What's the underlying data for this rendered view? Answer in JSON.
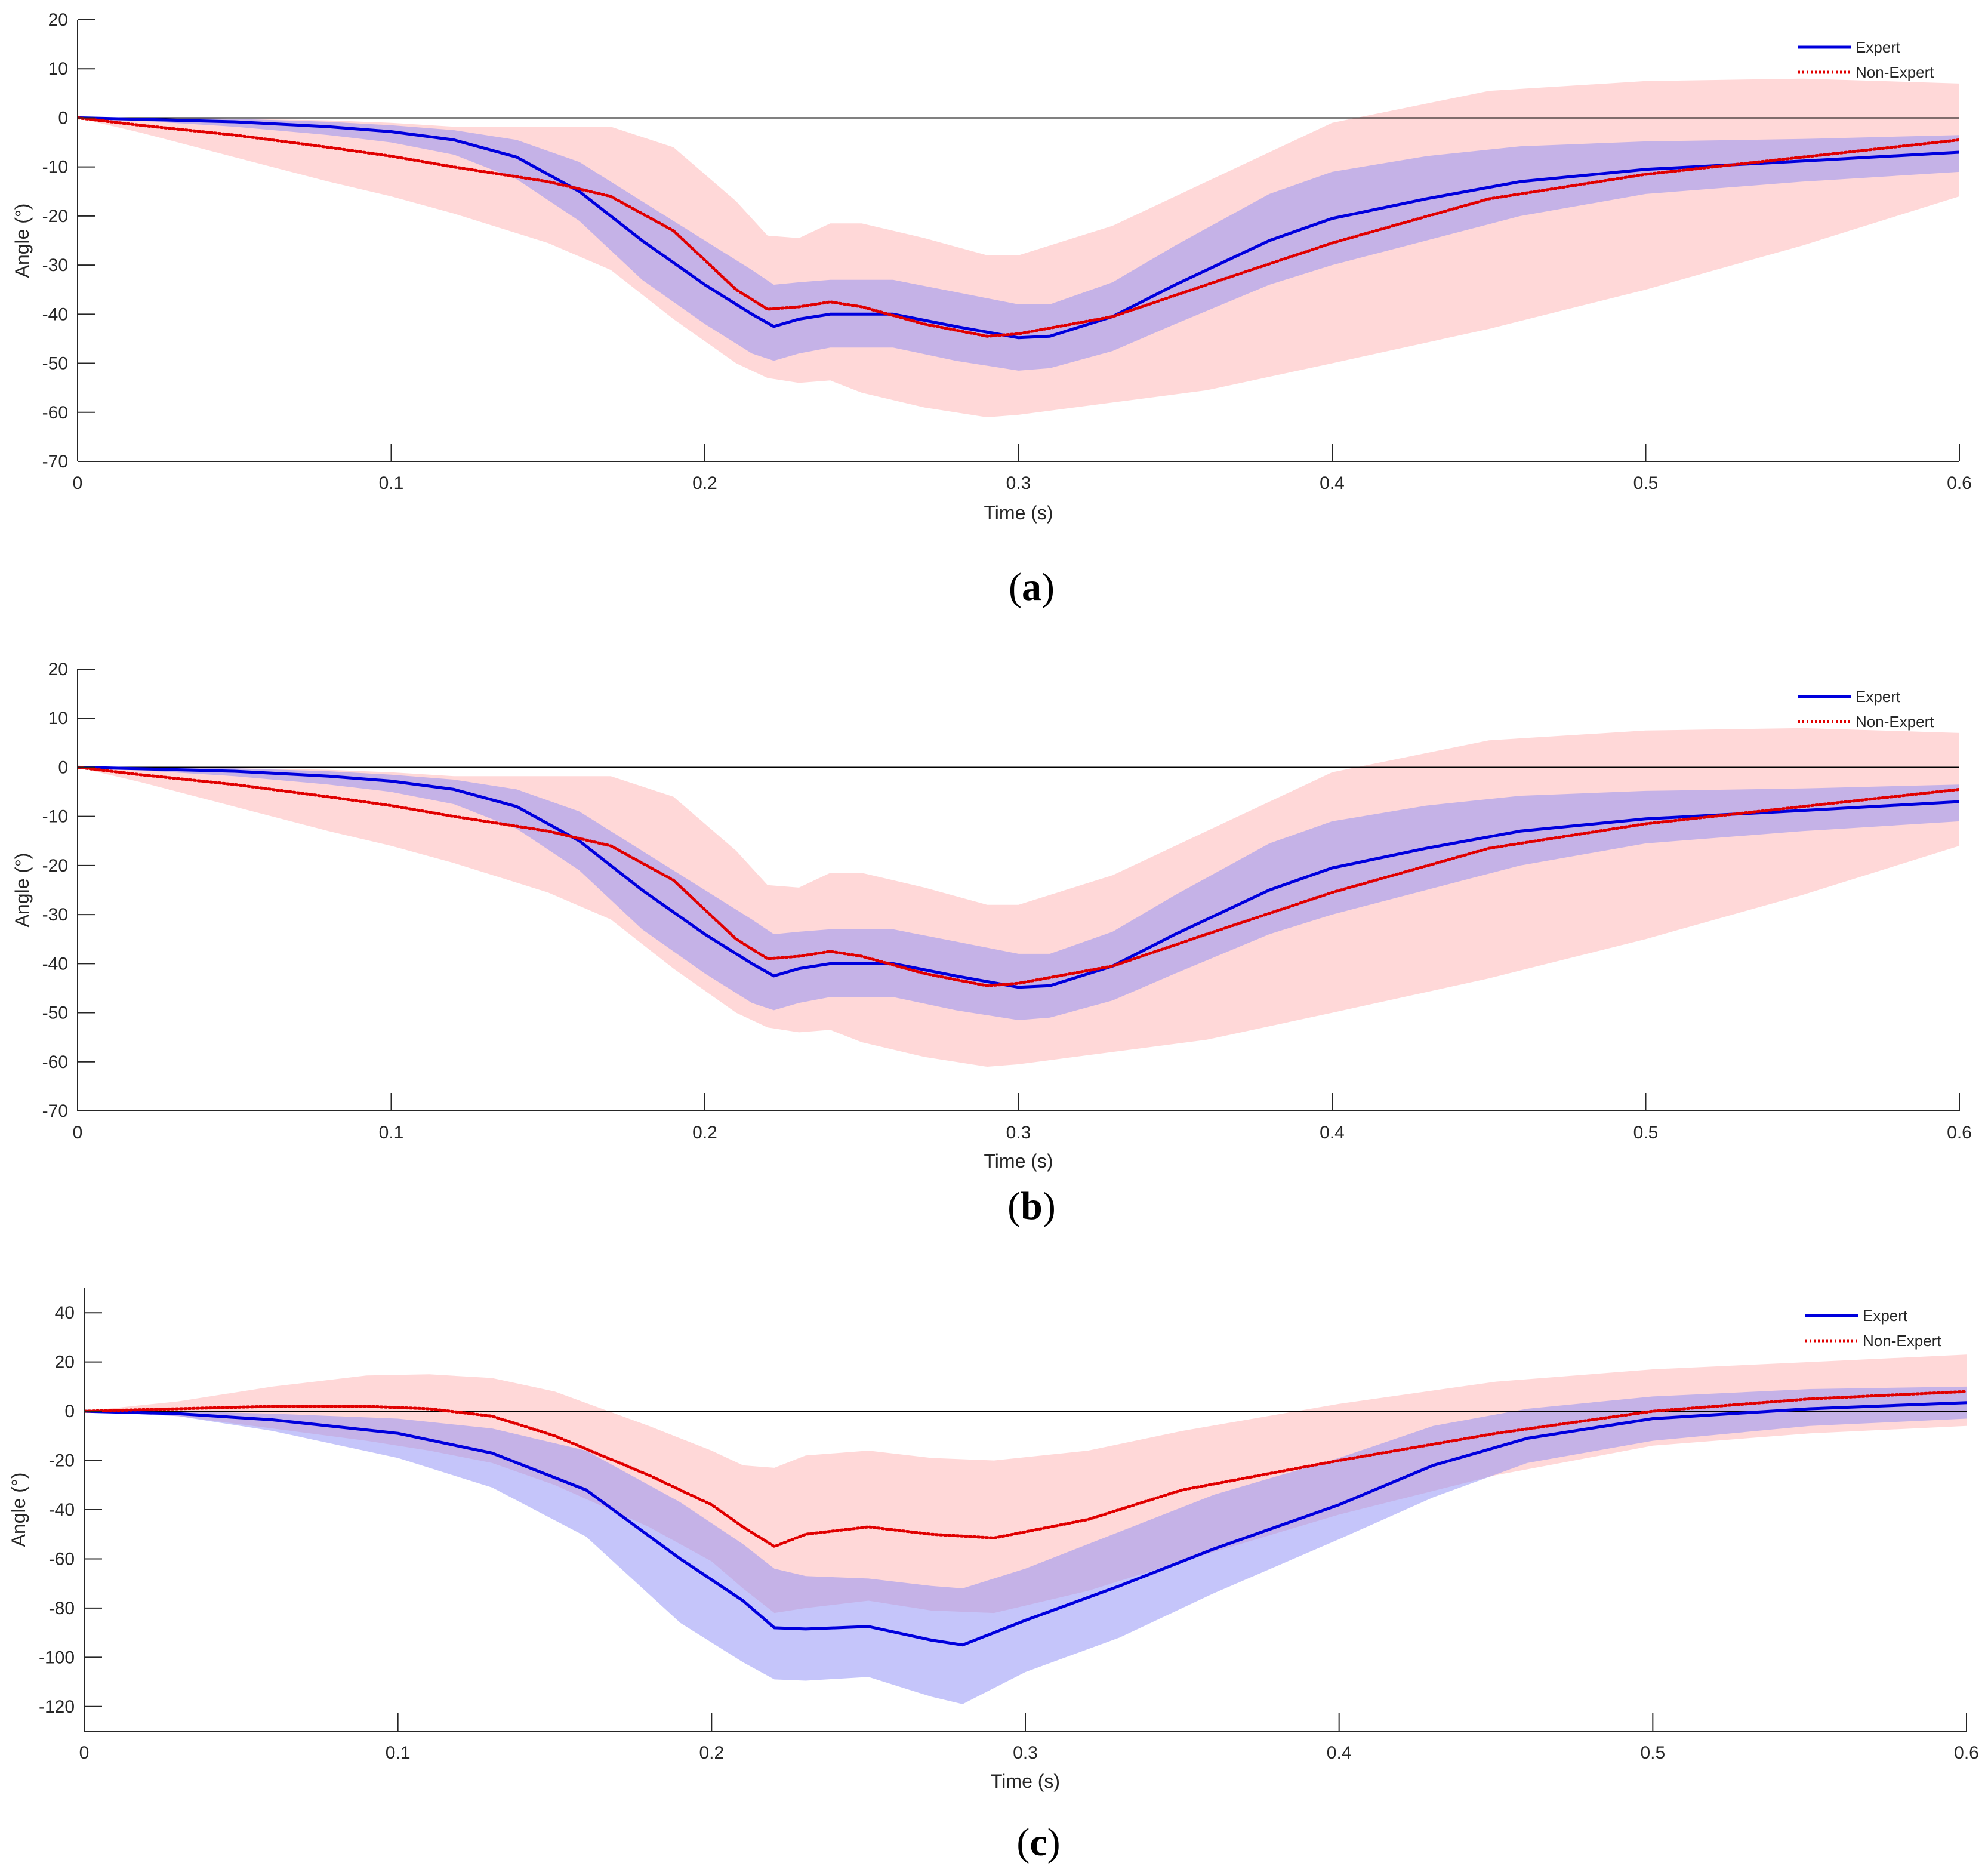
{
  "colors": {
    "expert": "#0000dd",
    "non_expert": "#e00000",
    "expert_band": "#8c8cf5",
    "non_expert_band": "#ffb8b8",
    "axis": "#262626",
    "zero_line": "#000000"
  },
  "chart_data": [
    {
      "type": "line",
      "panel_label": "(a)",
      "xlabel": "Time (s)",
      "ylabel": "Angle (°)",
      "xlim": [
        0,
        0.6
      ],
      "ylim": [
        -70,
        20
      ],
      "xticks": [
        0,
        0.1,
        0.2,
        0.3,
        0.4,
        0.5,
        0.6
      ],
      "xtick_labels": [
        "0",
        "0.1",
        "0.2",
        "0.3",
        "0.4",
        "0.5",
        "0.6"
      ],
      "yticks": [
        20,
        10,
        0,
        -10,
        -20,
        -30,
        -40,
        -50,
        -60,
        -70
      ],
      "ytick_labels": [
        "20",
        "10",
        "0",
        "-10",
        "-20",
        "-30",
        "-40",
        "-50",
        "-60",
        "-70"
      ],
      "legend_position": "top-right",
      "series": [
        {
          "name": "Expert",
          "style": "solid",
          "x": [
            0,
            0.02,
            0.05,
            0.08,
            0.1,
            0.12,
            0.14,
            0.16,
            0.18,
            0.2,
            0.215,
            0.222,
            0.23,
            0.24,
            0.26,
            0.28,
            0.3,
            0.31,
            0.33,
            0.35,
            0.38,
            0.4,
            0.43,
            0.46,
            0.5,
            0.55,
            0.6
          ],
          "y": [
            0,
            -0.3,
            -0.8,
            -1.8,
            -2.8,
            -4.5,
            -8,
            -15,
            -25,
            -34,
            -40,
            -42.5,
            -41,
            -40,
            -40,
            -42.5,
            -44.8,
            -44.5,
            -40.5,
            -34,
            -25,
            -20.5,
            -16.5,
            -13,
            -10.5,
            -8.8,
            -7
          ],
          "upper": [
            0,
            0,
            -0.2,
            -0.8,
            -1.5,
            -2.5,
            -4.5,
            -9,
            -17,
            -25,
            -31,
            -34,
            -33.5,
            -33,
            -33,
            -35.5,
            -38,
            -38,
            -33.5,
            -26,
            -15.5,
            -11,
            -7.8,
            -5.8,
            -4.8,
            -4.3,
            -3.5
          ],
          "lower": [
            0,
            -0.6,
            -1.8,
            -3.5,
            -5,
            -7.5,
            -12.5,
            -21,
            -33,
            -42,
            -48,
            -49.5,
            -48,
            -46.8,
            -46.8,
            -49.5,
            -51.5,
            -51,
            -47.5,
            -42,
            -34,
            -30,
            -25,
            -20,
            -15.5,
            -13,
            -11
          ]
        },
        {
          "name": "Non-Expert",
          "style": "dotted",
          "x": [
            0,
            0.02,
            0.05,
            0.08,
            0.1,
            0.12,
            0.15,
            0.17,
            0.19,
            0.21,
            0.22,
            0.23,
            0.24,
            0.25,
            0.27,
            0.29,
            0.3,
            0.33,
            0.36,
            0.4,
            0.45,
            0.5,
            0.55,
            0.6
          ],
          "y": [
            0,
            -1.5,
            -3.5,
            -6,
            -7.8,
            -10,
            -13,
            -16,
            -23,
            -35,
            -39,
            -38.5,
            -37.5,
            -38.5,
            -42,
            -44.5,
            -44,
            -40.5,
            -34,
            -25.5,
            -16.5,
            -11.5,
            -8,
            -4.5
          ],
          "upper": [
            0,
            0,
            -0.2,
            -0.5,
            -1,
            -1.8,
            -1.8,
            -1.8,
            -6,
            -17,
            -24,
            -24.5,
            -21.5,
            -21.5,
            -24.5,
            -28,
            -28,
            -22,
            -13,
            -1,
            5.5,
            7.5,
            8,
            7
          ],
          "lower": [
            0,
            -3,
            -8,
            -13,
            -16,
            -19.5,
            -25.5,
            -31,
            -41,
            -50,
            -53,
            -54,
            -53.5,
            -56,
            -59,
            -61,
            -60.5,
            -58,
            -55.5,
            -50,
            -43,
            -35,
            -26,
            -16
          ]
        }
      ]
    },
    {
      "type": "line",
      "panel_label": "(b)",
      "xlabel": "Time (s)",
      "ylabel": "Angle (°)",
      "xlim": [
        0,
        0.6
      ],
      "ylim": [
        -70,
        20
      ],
      "xticks": [
        0,
        0.1,
        0.2,
        0.3,
        0.4,
        0.5,
        0.6
      ],
      "xtick_labels": [
        "0",
        "0.1",
        "0.2",
        "0.3",
        "0.4",
        "0.5",
        "0.6"
      ],
      "yticks": [
        20,
        10,
        0,
        -10,
        -20,
        -30,
        -40,
        -50,
        -60,
        -70
      ],
      "ytick_labels": [
        "20",
        "10",
        "0",
        "-10",
        "-20",
        "-30",
        "-40",
        "-50",
        "-60",
        "-70"
      ],
      "legend_position": "top-right",
      "series": [
        {
          "name": "Expert",
          "style": "solid",
          "x": [
            0,
            0.02,
            0.05,
            0.08,
            0.1,
            0.12,
            0.14,
            0.16,
            0.18,
            0.2,
            0.215,
            0.222,
            0.23,
            0.24,
            0.26,
            0.28,
            0.3,
            0.31,
            0.33,
            0.35,
            0.38,
            0.4,
            0.43,
            0.46,
            0.5,
            0.55,
            0.6
          ],
          "y": [
            0,
            -0.3,
            -0.8,
            -1.8,
            -2.8,
            -4.5,
            -8,
            -15,
            -25,
            -34,
            -40,
            -42.5,
            -41,
            -40,
            -40,
            -42.5,
            -44.8,
            -44.5,
            -40.5,
            -34,
            -25,
            -20.5,
            -16.5,
            -13,
            -10.5,
            -8.8,
            -7
          ],
          "upper": [
            0,
            0,
            -0.2,
            -0.8,
            -1.5,
            -2.5,
            -4.5,
            -9,
            -17,
            -25,
            -31,
            -34,
            -33.5,
            -33,
            -33,
            -35.5,
            -38,
            -38,
            -33.5,
            -26,
            -15.5,
            -11,
            -7.8,
            -5.8,
            -4.8,
            -4.3,
            -3.5
          ],
          "lower": [
            0,
            -0.6,
            -1.8,
            -3.5,
            -5,
            -7.5,
            -12.5,
            -21,
            -33,
            -42,
            -48,
            -49.5,
            -48,
            -46.8,
            -46.8,
            -49.5,
            -51.5,
            -51,
            -47.5,
            -42,
            -34,
            -30,
            -25,
            -20,
            -15.5,
            -13,
            -11
          ]
        },
        {
          "name": "Non-Expert",
          "style": "dotted",
          "x": [
            0,
            0.02,
            0.05,
            0.08,
            0.1,
            0.12,
            0.15,
            0.17,
            0.19,
            0.21,
            0.22,
            0.23,
            0.24,
            0.25,
            0.27,
            0.29,
            0.3,
            0.33,
            0.36,
            0.4,
            0.45,
            0.5,
            0.55,
            0.6
          ],
          "y": [
            0,
            -1.5,
            -3.5,
            -6,
            -7.8,
            -10,
            -13,
            -16,
            -23,
            -35,
            -39,
            -38.5,
            -37.5,
            -38.5,
            -42,
            -44.5,
            -44,
            -40.5,
            -34,
            -25.5,
            -16.5,
            -11.5,
            -8,
            -4.5
          ],
          "upper": [
            0,
            0,
            -0.2,
            -0.5,
            -1,
            -1.8,
            -1.8,
            -1.8,
            -6,
            -17,
            -24,
            -24.5,
            -21.5,
            -21.5,
            -24.5,
            -28,
            -28,
            -22,
            -13,
            -1,
            5.5,
            7.5,
            8,
            7
          ],
          "lower": [
            0,
            -3,
            -8,
            -13,
            -16,
            -19.5,
            -25.5,
            -31,
            -41,
            -50,
            -53,
            -54,
            -53.5,
            -56,
            -59,
            -61,
            -60.5,
            -58,
            -55.5,
            -50,
            -43,
            -35,
            -26,
            -16
          ]
        }
      ]
    },
    {
      "type": "line",
      "panel_label": "(c)",
      "xlabel": "Time (s)",
      "ylabel": "Angle (°)",
      "xlim": [
        0,
        0.6
      ],
      "ylim": [
        -130,
        50
      ],
      "xticks": [
        0,
        0.1,
        0.2,
        0.3,
        0.4,
        0.5,
        0.6
      ],
      "xtick_labels": [
        "0",
        "0.1",
        "0.2",
        "0.3",
        "0.4",
        "0.5",
        "0.6"
      ],
      "yticks": [
        40,
        20,
        0,
        -20,
        -40,
        -60,
        -80,
        -100,
        -120
      ],
      "ytick_labels": [
        "40",
        "20",
        "0",
        "-20",
        "-40",
        "-60",
        "-80",
        "-100",
        "-120"
      ],
      "legend_position": "top-right",
      "series": [
        {
          "name": "Expert",
          "style": "solid",
          "x": [
            0,
            0.03,
            0.06,
            0.1,
            0.13,
            0.16,
            0.19,
            0.21,
            0.22,
            0.23,
            0.25,
            0.27,
            0.28,
            0.3,
            0.33,
            0.36,
            0.4,
            0.43,
            0.46,
            0.5,
            0.55,
            0.6
          ],
          "y": [
            0,
            -1,
            -3.5,
            -9,
            -17,
            -32,
            -60,
            -77,
            -88,
            -88.5,
            -87.5,
            -93,
            -95,
            -85,
            -71,
            -56,
            -38,
            -22,
            -11,
            -3,
            1,
            3.5
          ],
          "upper": [
            0,
            0,
            -1,
            -3,
            -7,
            -16,
            -37,
            -54,
            -64,
            -67,
            -68,
            -71,
            -72,
            -64,
            -49,
            -34,
            -19,
            -6,
            1,
            6,
            9,
            10
          ],
          "lower": [
            0,
            -2,
            -8,
            -19,
            -31,
            -51,
            -86,
            -102,
            -109,
            -109.5,
            -108,
            -116,
            -119,
            -106,
            -92,
            -74,
            -52,
            -35,
            -21,
            -12,
            -6,
            -3
          ]
        },
        {
          "name": "Non-Expert",
          "style": "dotted",
          "x": [
            0,
            0.03,
            0.06,
            0.09,
            0.11,
            0.13,
            0.15,
            0.18,
            0.2,
            0.21,
            0.22,
            0.23,
            0.25,
            0.27,
            0.29,
            0.32,
            0.35,
            0.4,
            0.45,
            0.5,
            0.55,
            0.6
          ],
          "y": [
            0,
            1,
            2,
            2,
            1,
            -2,
            -10,
            -26,
            -38,
            -47,
            -55,
            -50,
            -47,
            -50,
            -51.5,
            -44,
            -32,
            -20,
            -9,
            0,
            5,
            8
          ],
          "upper": [
            0,
            4,
            10,
            14.5,
            15,
            13.5,
            8,
            -6,
            -16,
            -22,
            -23,
            -18,
            -16,
            -19,
            -20,
            -16,
            -8,
            3,
            12,
            17,
            20,
            23
          ],
          "lower": [
            0,
            -2,
            -7,
            -12,
            -16,
            -21,
            -30,
            -47,
            -61,
            -72,
            -82,
            -80,
            -77,
            -81,
            -82,
            -73,
            -61,
            -42,
            -26,
            -14,
            -9,
            -6
          ]
        }
      ]
    }
  ]
}
